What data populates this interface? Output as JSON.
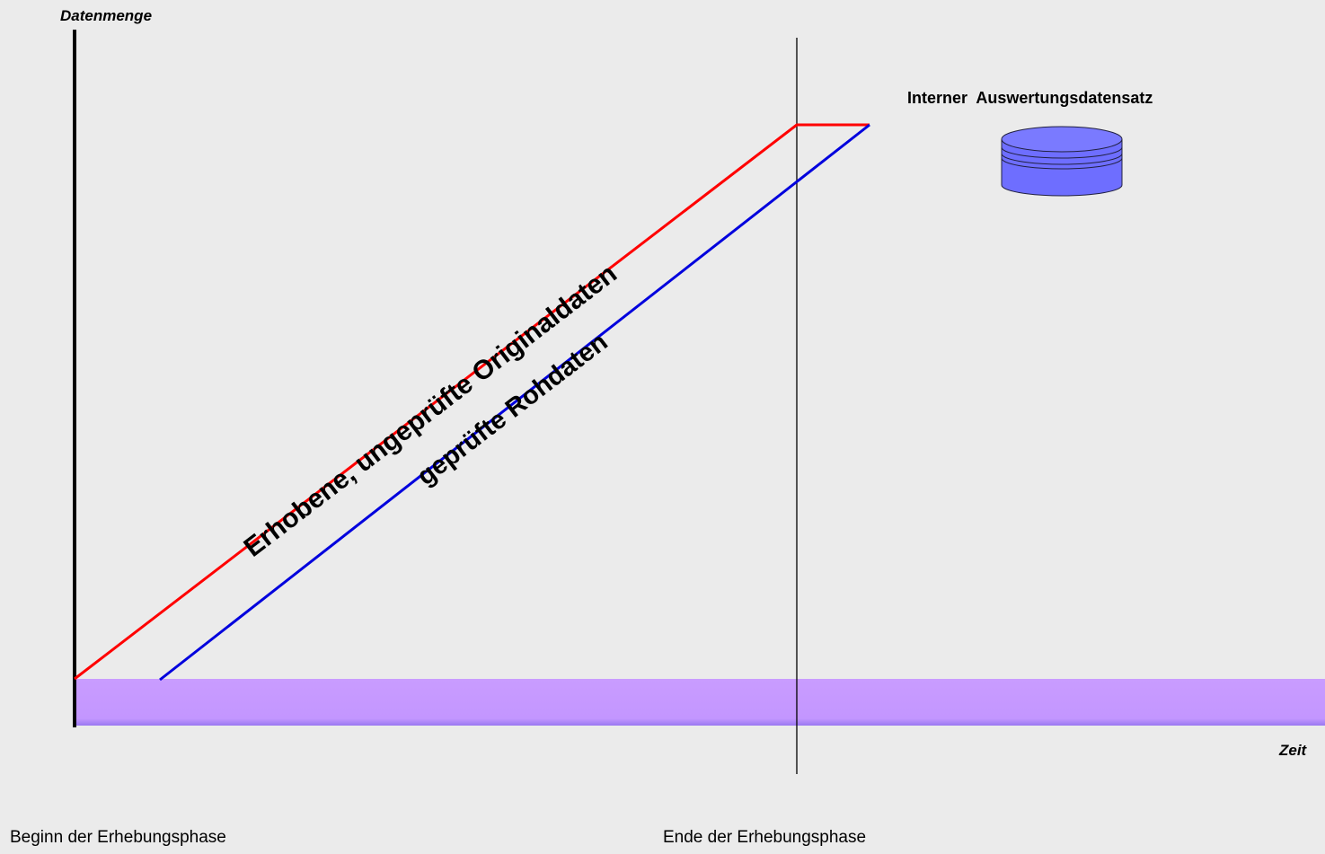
{
  "diagram": {
    "y_axis_title": "Datenmenge",
    "x_axis_title": "Zeit",
    "start_label": "Beginn der Erhebungsphase",
    "end_label": "Ende der Erhebungsphase",
    "database_label": "Interner  Auswertungsdatensatz",
    "red_line_label": "Erhobene, ungeprüfte Originaldaten",
    "blue_line_label": "geprüfte Rohdaten",
    "colors": {
      "background": "#ebebeb",
      "raw_line": "#ff0000",
      "checked_line": "#0000dd",
      "band": "#c899ff",
      "database": "#6e6eff"
    },
    "icons": [
      "database-icon"
    ]
  }
}
